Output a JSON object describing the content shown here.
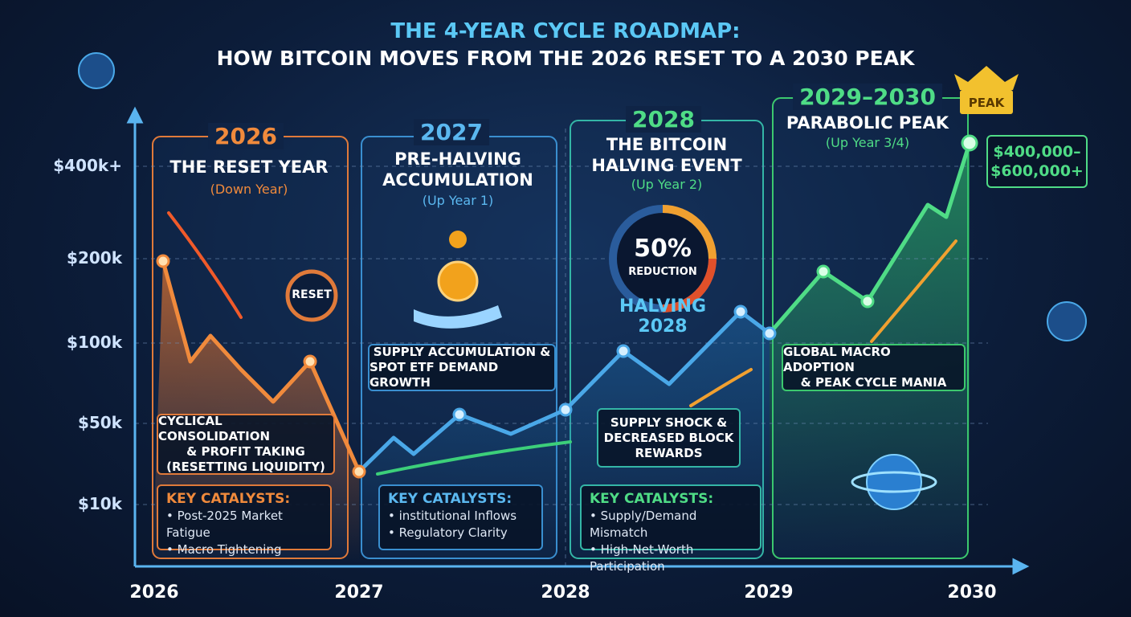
{
  "header": {
    "title": "THE 4-YEAR CYCLE ROADMAP:",
    "subtitle": "HOW BITCOIN MOVES FROM THE 2026 RESET TO A 2030 PEAK"
  },
  "axes": {
    "y_labels": [
      "$400k+",
      "$200k",
      "$100k",
      "$50k",
      "$10k"
    ],
    "x_labels": [
      "2026",
      "2027",
      "2028",
      "2029",
      "2030"
    ]
  },
  "panels": [
    {
      "year": "2026",
      "title": [
        "THE RESET YEAR"
      ],
      "subtitle": "(Down Year)",
      "callout": [
        "CYCLICAL CONSOLIDATION",
        "& PROFIT TAKING",
        "(RESETTING LIQUIDITY)"
      ],
      "catalysts": {
        "heading": "KEY CATALYSTS:",
        "items": [
          "Post-2025 Market Fatigue",
          "Macro Tightening"
        ]
      }
    },
    {
      "year": "2027",
      "title": [
        "PRE-HALVING",
        "ACCUMULATION"
      ],
      "subtitle": "(Up Year 1)",
      "callout": [
        "SUPPLY ACCUMULATION &",
        "SPOT ETF DEMAND GROWTH"
      ],
      "catalysts": {
        "heading": "KEY CATALYSTS:",
        "items": [
          "institutional Inflows",
          "Regulatory Clarity"
        ]
      }
    },
    {
      "year": "2028",
      "title": [
        "THE BITCOIN",
        "HALVING EVENT"
      ],
      "subtitle": "(Up Year 2)",
      "callout": [
        "SUPPLY SHOCK &",
        "DECREASED BLOCK",
        "REWARDS"
      ],
      "catalysts": {
        "heading": "KEY CATALYSTS:",
        "items": [
          "Supply/Demand Mismatch",
          "High-Net-Worth Participation"
        ]
      }
    },
    {
      "year": "2029–2030",
      "title": [
        "PARABOLIC PEAK"
      ],
      "subtitle": "(Up Year 3/4)",
      "callout": [
        "GLOBAL MACRO ADOPTION",
        "& PEAK CYCLE MANIA"
      ]
    }
  ],
  "badges": {
    "reset": "RESET",
    "gauge_value": "50%",
    "gauge_label": "REDUCTION",
    "halving": [
      "HALVING",
      "2028"
    ],
    "peak": "PEAK",
    "price_range": [
      "$400,000–",
      "$600,000+"
    ]
  }
}
